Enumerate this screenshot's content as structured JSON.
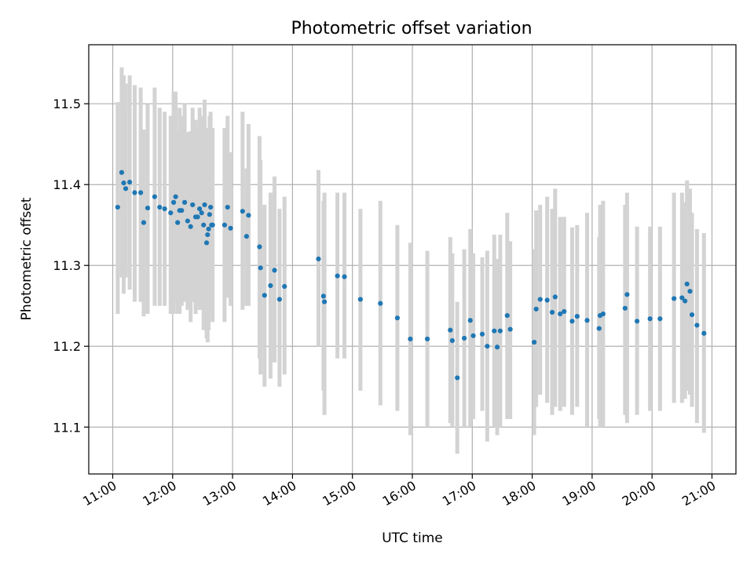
{
  "chart_data": {
    "type": "scatter",
    "title": "Photometric offset variation",
    "xlabel": "UTC time",
    "ylabel": "Photometric offset",
    "grid": true,
    "legend": "none",
    "xlim": [
      "10:36",
      "21:24"
    ],
    "ylim": [
      11.042,
      11.573
    ],
    "x_ticks": [
      "11:00",
      "12:00",
      "13:00",
      "14:00",
      "15:00",
      "16:00",
      "17:00",
      "18:00",
      "19:00",
      "20:00",
      "21:00"
    ],
    "y_ticks": [
      11.1,
      11.2,
      11.3,
      11.4,
      11.5
    ],
    "y_tick_labels": [
      "11.1",
      "11.2",
      "11.3",
      "11.4",
      "11.5"
    ],
    "point_color": "#1f77b4",
    "error_color": "#d3d3d3",
    "series": [
      {
        "x": [
          "11:05",
          "11:09",
          "11:11",
          "11:13",
          "11:17",
          "11:22",
          "11:28",
          "11:31",
          "11:35",
          "11:42",
          "11:47",
          "11:52",
          "11:58",
          "12:01",
          "12:03",
          "12:05",
          "12:07",
          "12:09",
          "12:12",
          "12:15",
          "12:18",
          "12:20",
          "12:23",
          "12:25",
          "12:27",
          "12:29",
          "12:31",
          "12:32",
          "12:34",
          "12:35",
          "12:36",
          "12:37",
          "12:38",
          "12:39",
          "12:40",
          "12:52",
          "12:55",
          "12:58",
          "13:10",
          "13:14",
          "13:16",
          "13:27",
          "13:28",
          "13:32",
          "13:38",
          "13:42",
          "13:47",
          "13:52",
          "14:26",
          "14:31",
          "14:32",
          "14:45",
          "14:52",
          "15:08",
          "15:28",
          "15:45",
          "15:58",
          "16:15",
          "16:38",
          "16:40",
          "16:45",
          "16:52",
          "16:58",
          "17:01",
          "17:10",
          "17:15",
          "17:22",
          "17:25",
          "17:28",
          "17:35",
          "17:38",
          "18:02",
          "18:04",
          "18:08",
          "18:15",
          "18:20",
          "18:23",
          "18:28",
          "18:32",
          "18:40",
          "18:45",
          "18:55",
          "19:07",
          "19:08",
          "19:11",
          "19:33",
          "19:35",
          "19:45",
          "19:58",
          "20:08",
          "20:22",
          "20:30",
          "20:33",
          "20:35",
          "20:38",
          "20:40",
          "20:45",
          "20:52"
        ],
        "y": [
          11.372,
          11.415,
          11.402,
          11.395,
          11.403,
          11.39,
          11.39,
          11.353,
          11.371,
          11.385,
          11.372,
          11.37,
          11.365,
          11.378,
          11.385,
          11.353,
          11.368,
          11.368,
          11.378,
          11.355,
          11.348,
          11.375,
          11.36,
          11.36,
          11.37,
          11.365,
          11.35,
          11.375,
          11.328,
          11.338,
          11.345,
          11.363,
          11.372,
          11.35,
          11.35,
          11.35,
          11.372,
          11.346,
          11.367,
          11.336,
          11.362,
          11.323,
          11.297,
          11.263,
          11.275,
          11.294,
          11.258,
          11.274,
          11.308,
          11.262,
          11.255,
          11.287,
          11.286,
          11.258,
          11.253,
          11.235,
          11.209,
          11.209,
          11.22,
          11.207,
          11.161,
          11.21,
          11.232,
          11.213,
          11.215,
          11.2,
          11.219,
          11.199,
          11.219,
          11.238,
          11.221,
          11.205,
          11.246,
          11.258,
          11.257,
          11.242,
          11.261,
          11.24,
          11.243,
          11.231,
          11.237,
          11.232,
          11.222,
          11.238,
          11.24,
          11.247,
          11.264,
          11.231,
          11.234,
          11.234,
          11.259,
          11.26,
          11.256,
          11.277,
          11.268,
          11.239,
          11.226,
          11.216
        ],
        "error_low": [
          11.24,
          11.285,
          11.265,
          11.285,
          11.27,
          11.255,
          11.255,
          11.237,
          11.24,
          11.25,
          11.25,
          11.25,
          11.24,
          11.24,
          11.255,
          11.24,
          11.24,
          11.25,
          11.255,
          11.245,
          11.23,
          11.255,
          11.24,
          11.25,
          11.245,
          11.245,
          11.22,
          11.245,
          11.21,
          11.205,
          11.22,
          11.24,
          11.25,
          11.24,
          11.23,
          11.23,
          11.26,
          11.25,
          11.245,
          11.25,
          11.25,
          11.185,
          11.165,
          11.15,
          11.16,
          11.18,
          11.15,
          11.165,
          11.2,
          11.145,
          11.115,
          11.185,
          11.185,
          11.145,
          11.127,
          11.12,
          11.09,
          11.1,
          11.105,
          11.1,
          11.067,
          11.1,
          11.1,
          11.11,
          11.12,
          11.082,
          11.1,
          11.09,
          11.1,
          11.11,
          11.11,
          11.09,
          11.125,
          11.14,
          11.13,
          11.115,
          11.125,
          11.12,
          11.125,
          11.115,
          11.125,
          11.1,
          11.11,
          11.1,
          11.1,
          11.115,
          11.105,
          11.115,
          11.12,
          11.12,
          11.13,
          11.13,
          11.135,
          11.145,
          11.14,
          11.125,
          11.105,
          11.093
        ],
        "error_high": [
          11.502,
          11.545,
          11.535,
          11.525,
          11.535,
          11.523,
          11.52,
          11.468,
          11.5,
          11.52,
          11.495,
          11.49,
          11.485,
          11.515,
          11.515,
          11.465,
          11.495,
          11.485,
          11.5,
          11.465,
          11.466,
          11.495,
          11.48,
          11.47,
          11.495,
          11.485,
          11.48,
          11.505,
          11.445,
          11.47,
          11.47,
          11.485,
          11.49,
          11.46,
          11.47,
          11.47,
          11.485,
          11.44,
          11.49,
          11.42,
          11.475,
          11.46,
          11.43,
          11.375,
          11.39,
          11.41,
          11.37,
          11.385,
          11.418,
          11.38,
          11.39,
          11.39,
          11.39,
          11.37,
          11.38,
          11.35,
          11.328,
          11.318,
          11.335,
          11.315,
          11.255,
          11.32,
          11.345,
          11.315,
          11.31,
          11.318,
          11.338,
          11.308,
          11.338,
          11.365,
          11.33,
          11.32,
          11.368,
          11.375,
          11.385,
          11.37,
          11.395,
          11.36,
          11.36,
          11.347,
          11.35,
          11.365,
          11.335,
          11.375,
          11.38,
          11.375,
          11.39,
          11.348,
          11.348,
          11.348,
          11.39,
          11.39,
          11.378,
          11.405,
          11.395,
          11.365,
          11.345,
          11.34
        ]
      }
    ]
  }
}
